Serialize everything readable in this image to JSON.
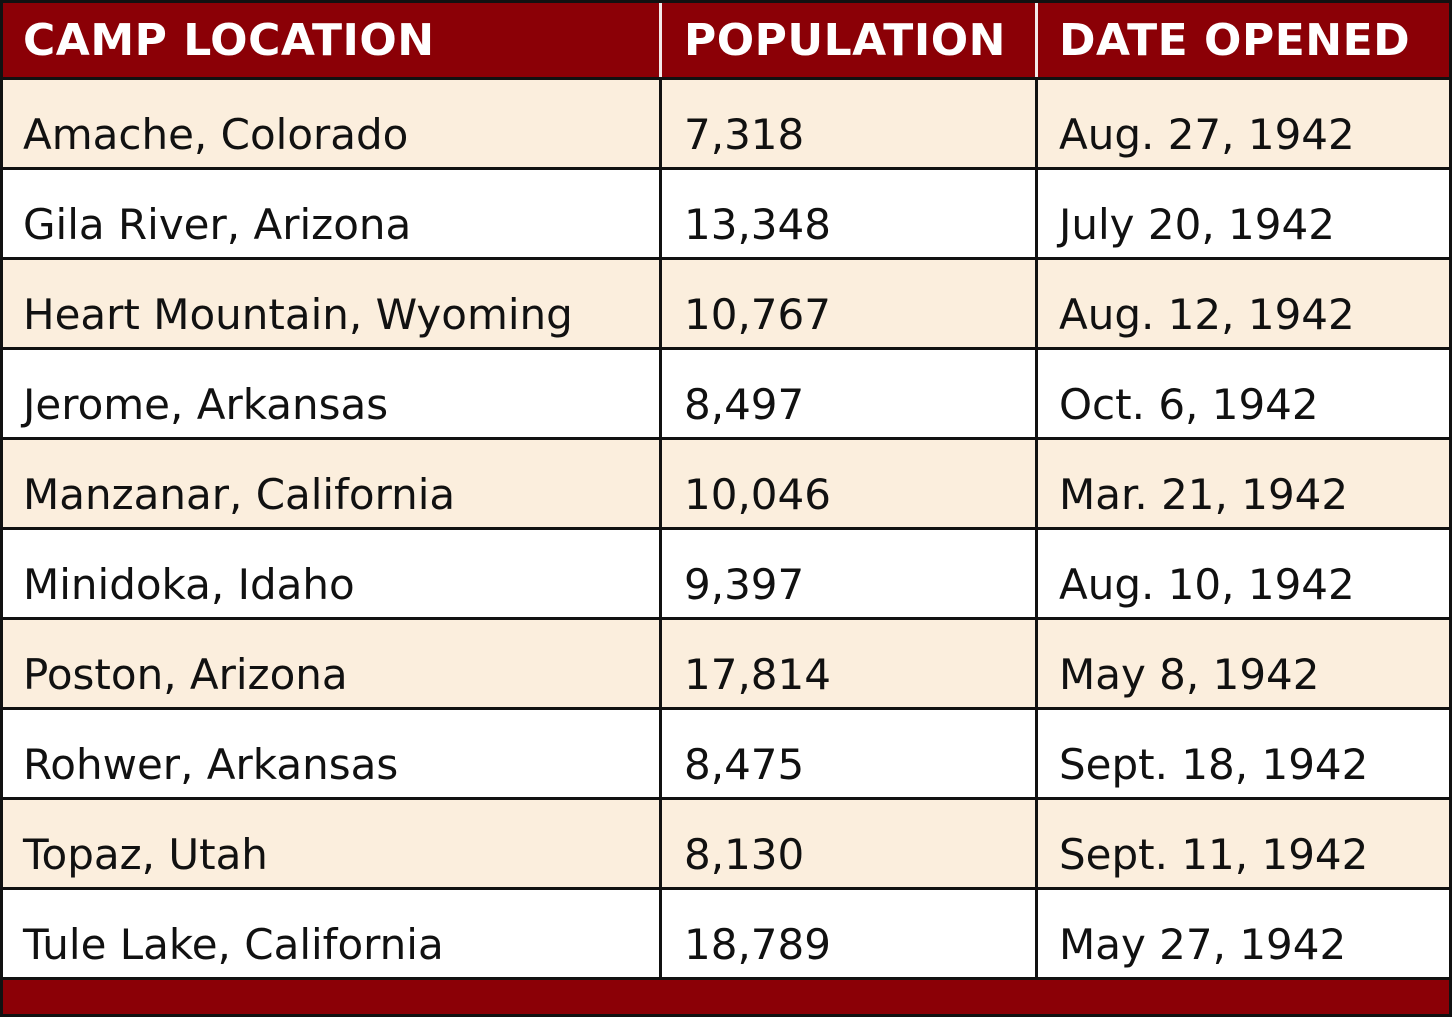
{
  "table": {
    "headers": [
      "CAMP LOCATION",
      "POPULATION",
      "DATE OPENED"
    ],
    "rows": [
      {
        "location": "Amache, Colorado",
        "population": "7,318",
        "date_opened": "Aug. 27, 1942"
      },
      {
        "location": "Gila River, Arizona",
        "population": "13,348",
        "date_opened": "July 20, 1942"
      },
      {
        "location": "Heart Mountain, Wyoming",
        "population": "10,767",
        "date_opened": "Aug. 12, 1942"
      },
      {
        "location": "Jerome, Arkansas",
        "population": "8,497",
        "date_opened": "Oct. 6, 1942"
      },
      {
        "location": "Manzanar, California",
        "population": "10,046",
        "date_opened": "Mar. 21, 1942"
      },
      {
        "location": "Minidoka, Idaho",
        "population": "9,397",
        "date_opened": "Aug. 10, 1942"
      },
      {
        "location": "Poston, Arizona",
        "population": "17,814",
        "date_opened": "May 8, 1942"
      },
      {
        "location": "Rohwer, Arkansas",
        "population": "8,475",
        "date_opened": "Sept. 18, 1942"
      },
      {
        "location": "Topaz, Utah",
        "population": "8,130",
        "date_opened": "Sept. 11, 1942"
      },
      {
        "location": "Tule Lake, California",
        "population": "18,789",
        "date_opened": "May 27, 1942"
      }
    ]
  },
  "colors": {
    "header_bg": "#8b0006",
    "shaded_row_bg": "#fbeedd",
    "border": "#111111"
  }
}
